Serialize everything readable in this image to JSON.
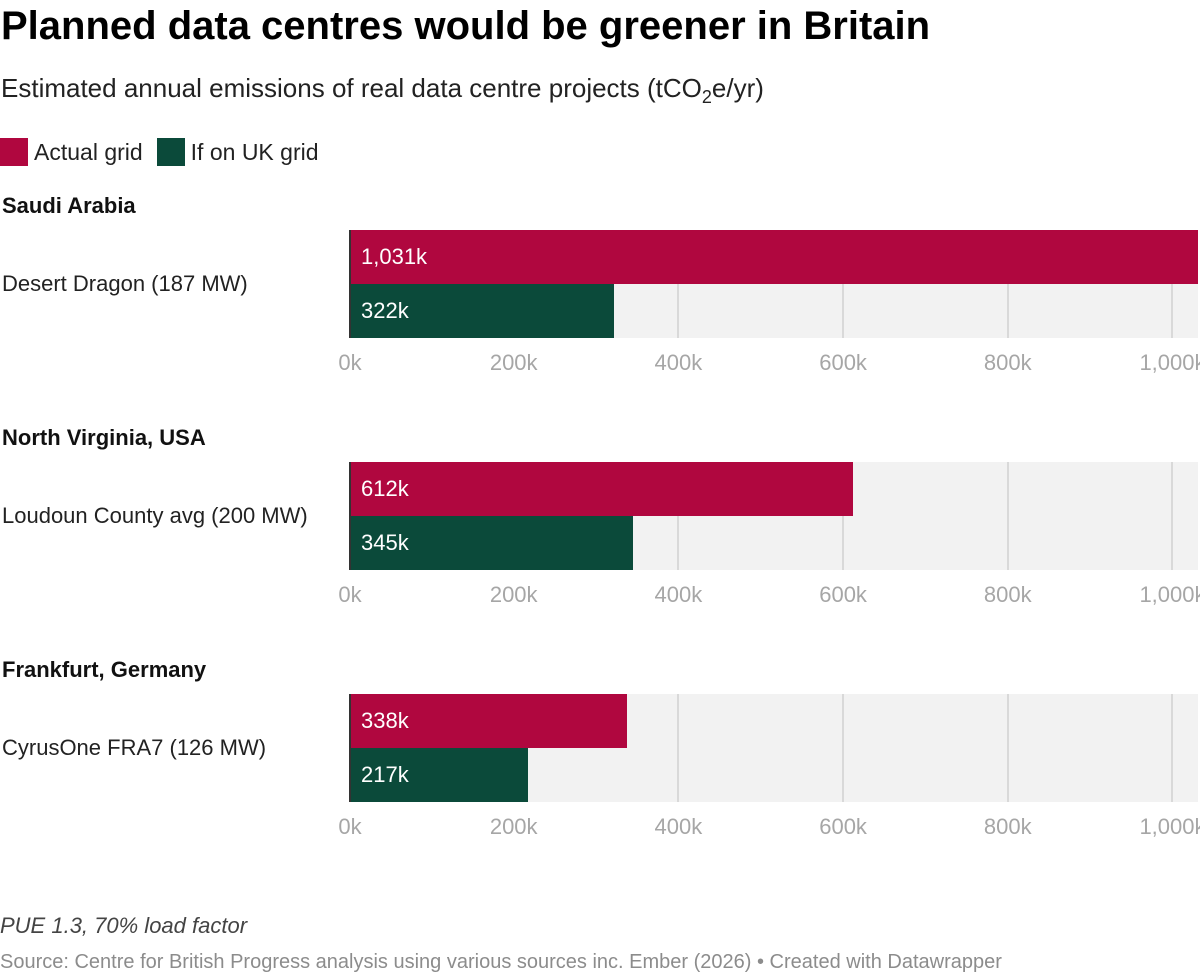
{
  "header": {
    "title": "Planned data centres would be greener in Britain",
    "subtitle_main": "Estimated annual emissions of real data centre projects (tCO",
    "subtitle_sub": "2",
    "subtitle_end": "e/yr)"
  },
  "legend": [
    {
      "label": "Actual grid",
      "color": "#b0073f"
    },
    {
      "label": "If on UK grid",
      "color": "#0b4a3a"
    }
  ],
  "footer": {
    "note": "PUE 1.3, 70% load factor",
    "source": "Source: Centre for British Progress analysis using various sources inc. Ember (2026) • Created with Datawrapper"
  },
  "chart_data": {
    "type": "bar",
    "orientation": "horizontal",
    "xlim": [
      0,
      1031
    ],
    "x_ticks": [
      0,
      200,
      400,
      600,
      800,
      1000
    ],
    "x_tick_labels": [
      "0k",
      "200k",
      "400k",
      "600k",
      "800k",
      "1,000k"
    ],
    "grid": true,
    "legend_position": "top-left",
    "series": [
      {
        "name": "Actual grid",
        "color": "#b0073f"
      },
      {
        "name": "If on UK grid",
        "color": "#0b4a3a"
      }
    ],
    "groups": [
      {
        "group": "Saudi Arabia",
        "label": "Desert Dragon (187 MW)",
        "values": [
          1031,
          322
        ],
        "value_labels": [
          "1,031k",
          "322k"
        ]
      },
      {
        "group": "North Virginia, USA",
        "label": "Loudoun County avg (200 MW)",
        "values": [
          612,
          345
        ],
        "value_labels": [
          "612k",
          "345k"
        ]
      },
      {
        "group": "Frankfurt, Germany",
        "label": "CyrusOne FRA7 (126 MW)",
        "values": [
          338,
          217
        ],
        "value_labels": [
          "338k",
          "217k"
        ]
      }
    ]
  }
}
